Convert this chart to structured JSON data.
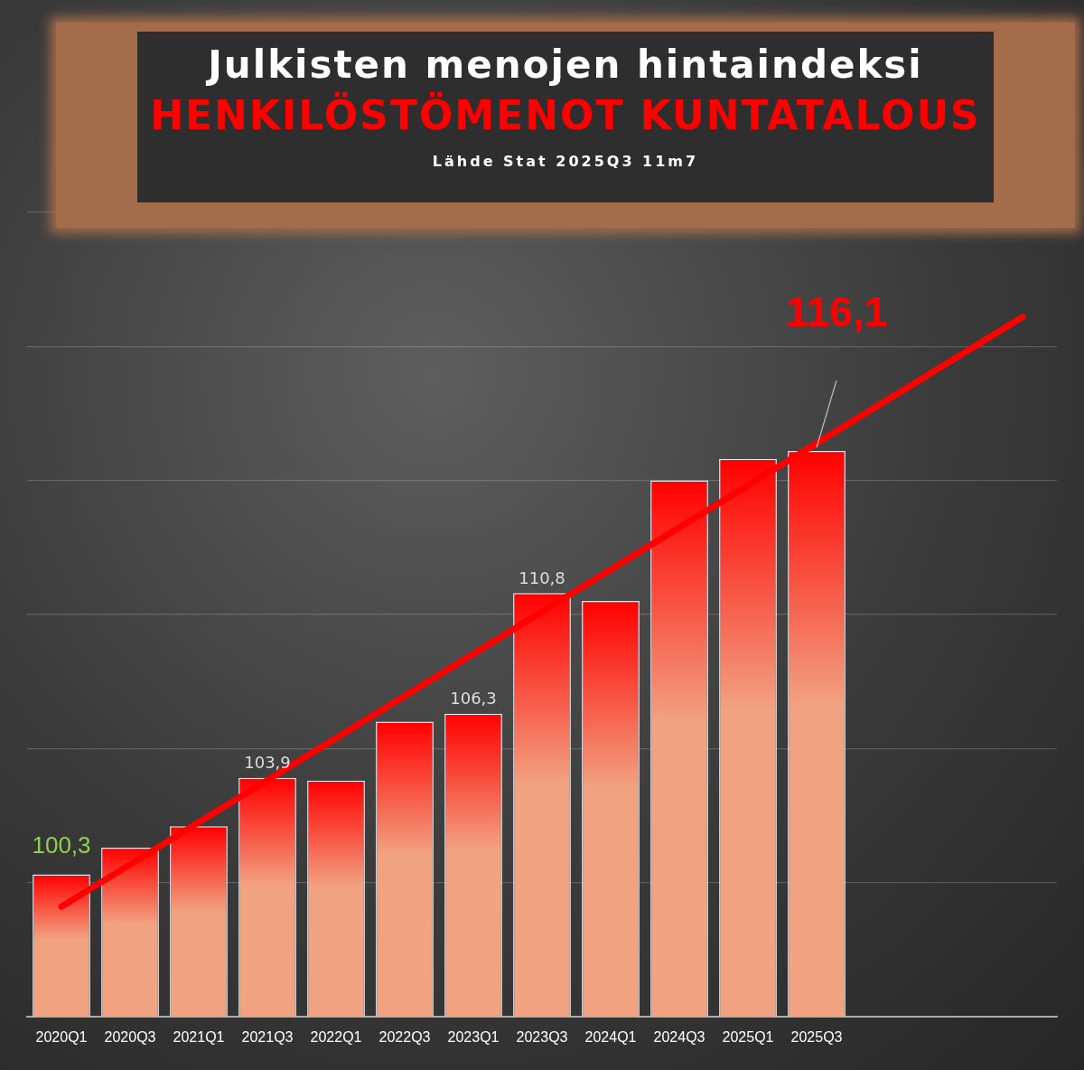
{
  "chart_data": {
    "type": "bar",
    "title": "Julkisten menojen hintaindeksi",
    "subtitle": "HENKILÖSTÖMENOT KUNTATALOUS",
    "categories": [
      "2020Q1",
      "2020Q3",
      "2021Q1",
      "2021Q3",
      "2022Q1",
      "2022Q3",
      "2023Q1",
      "2023Q3",
      "2024Q1",
      "2024Q3",
      "2025Q1",
      "2025Q3",
      null,
      null,
      null
    ],
    "series": [
      {
        "color": "#ff0000",
        "values": [
          100.3,
          101.3,
          102.1,
          103.9,
          103.8,
          106.0,
          106.3,
          110.8,
          110.5,
          115.0,
          115.8,
          116.1,
          null,
          null,
          null
        ],
        "value_labels": [
          null,
          null,
          null,
          "103,9",
          null,
          null,
          "106,3",
          "110,8",
          null,
          null,
          null,
          null,
          null,
          null,
          null
        ]
      },
      {
        "type": "line",
        "color": "#ff0000",
        "values": [
          99.1,
          null,
          null,
          null,
          null,
          null,
          null,
          null,
          null,
          null,
          null,
          null,
          null,
          null,
          121.1
        ]
      }
    ],
    "ylim": [
      95,
      125
    ],
    "yticks": [
      {
        "value": 95,
        "label": null
      },
      {
        "value": 100,
        "label": null
      },
      {
        "value": 105,
        "label": null
      },
      {
        "value": 110,
        "label": null
      },
      {
        "value": 115,
        "label": null
      },
      {
        "value": 120,
        "label": null
      },
      {
        "value": 125,
        "label": null
      }
    ],
    "tick_labels": "x",
    "grid": "y",
    "legend": false,
    "marker": "none",
    "annotations": [
      {
        "text": "116,1",
        "x": "2025Q3",
        "y": 116.1
      },
      {
        "text": "100,3",
        "x": "2020Q1",
        "y": 100.3
      },
      "Lähde Stat 2025Q3 11m7"
    ]
  }
}
